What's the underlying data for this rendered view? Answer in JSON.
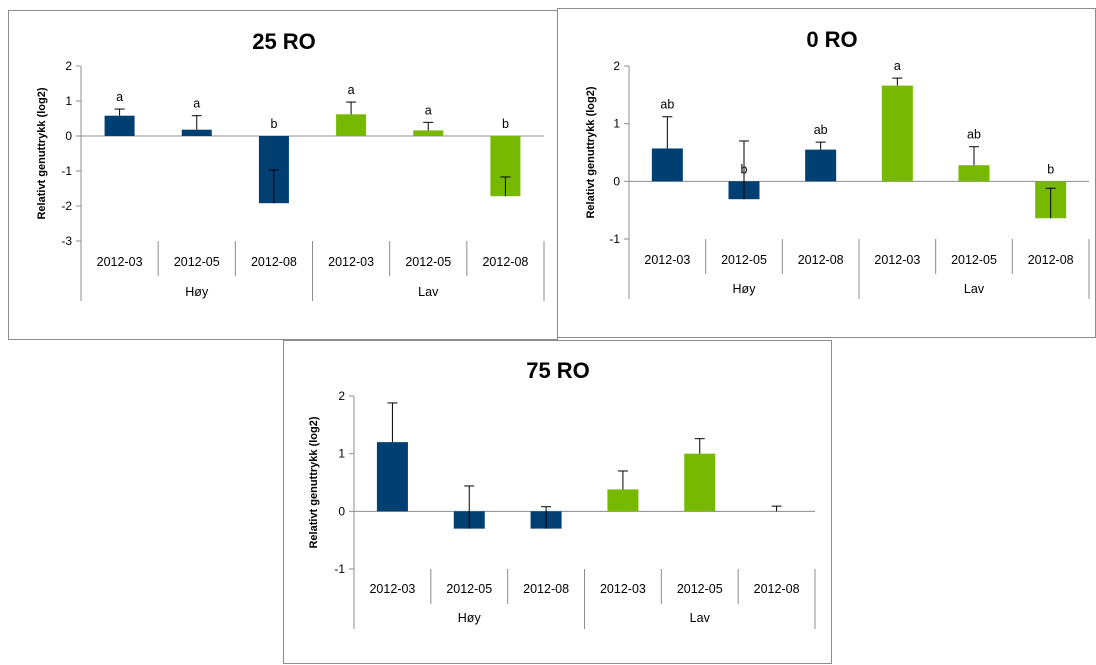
{
  "colors": {
    "hoy": "#003F72",
    "lav": "#77B800"
  },
  "chart_data": [
    {
      "type": "bar",
      "title": "25 RO",
      "ylabel": "Relativt genuttrykk (log2)",
      "ylim": [
        -3,
        2
      ],
      "yticks": [
        2,
        1,
        0,
        -1,
        -2,
        -3
      ],
      "categories": [
        "2012-03",
        "2012-05",
        "2012-08",
        "2012-03",
        "2012-05",
        "2012-08"
      ],
      "groups": [
        {
          "label": "Høy",
          "color": "#003F72"
        },
        {
          "label": "Lav",
          "color": "#77B800"
        }
      ],
      "values": [
        0.58,
        0.18,
        -1.92,
        0.62,
        0.16,
        -1.72
      ],
      "error_tips": [
        0.77,
        0.58,
        -0.97,
        0.97,
        0.39,
        -1.17
      ],
      "letters": [
        "a",
        "a",
        "b",
        "a",
        "a",
        "b"
      ]
    },
    {
      "type": "bar",
      "title": "0 RO",
      "ylabel": "Relativt genuttrykk (log2)",
      "ylim": [
        -1,
        2
      ],
      "yticks": [
        2,
        1,
        0,
        -1
      ],
      "categories": [
        "2012-03",
        "2012-05",
        "2012-08",
        "2012-03",
        "2012-05",
        "2012-08"
      ],
      "groups": [
        {
          "label": "Høy",
          "color": "#003F72"
        },
        {
          "label": "Lav",
          "color": "#77B800"
        }
      ],
      "values": [
        0.57,
        -0.31,
        0.55,
        1.66,
        0.28,
        -0.64
      ],
      "error_tips": [
        1.12,
        0.7,
        0.68,
        1.79,
        0.6,
        -0.12
      ],
      "letters": [
        "ab",
        "b",
        "ab",
        "a",
        "ab",
        "b"
      ]
    },
    {
      "type": "bar",
      "title": "75 RO",
      "ylabel": "Relativt genuttrykk (log2)",
      "ylim": [
        -1,
        2
      ],
      "yticks": [
        2,
        1,
        0,
        -1
      ],
      "categories": [
        "2012-03",
        "2012-05",
        "2012-08",
        "2012-03",
        "2012-05",
        "2012-08"
      ],
      "groups": [
        {
          "label": "Høy",
          "color": "#003F72"
        },
        {
          "label": "Lav",
          "color": "#77B800"
        }
      ],
      "values": [
        1.2,
        -0.3,
        -0.3,
        0.38,
        1.0,
        0.0
      ],
      "error_tips": [
        1.88,
        0.44,
        0.08,
        0.7,
        1.26,
        0.09
      ],
      "letters": [
        "",
        "",
        "",
        "",
        "",
        ""
      ]
    }
  ]
}
